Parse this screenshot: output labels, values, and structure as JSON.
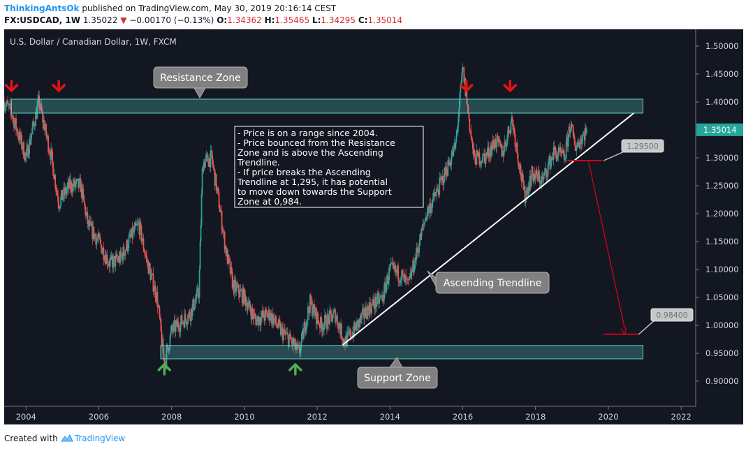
{
  "header": {
    "user": "ThinkingAntsOk",
    "published": " published on TradingView.com, May 30, 2019 20:16:14 CEST",
    "symbol": "FX:USDCAD, 1W",
    "last": "1.35022",
    "change": "−0.00170 (−0.13%)",
    "o_label": "O:",
    "o_value": "1.34362",
    "h_label": "H:",
    "h_value": "1.35465",
    "l_label": "L:",
    "l_value": "1.34295",
    "c_label": "C:",
    "c_value": "1.35014"
  },
  "footer": {
    "created_with": "Created with",
    "brand": "TradingView"
  },
  "colors": {
    "background": "#131722",
    "candle_up": "#26a69a",
    "candle_down": "#ef5350",
    "zone": "#5fd3c8",
    "arrow_down": "#e41414",
    "arrow_up": "#4caf50",
    "projection": "#d0021b",
    "price_badge": "#26a69a"
  },
  "chart_data": {
    "type": "candlestick",
    "title": "U.S. Dollar / Canadian Dollar, 1W, FXCM",
    "xlabel": "",
    "ylabel": "",
    "xlim": [
      2003.4,
      2022.4
    ],
    "ylim": [
      0.855,
      1.53
    ],
    "x_ticks": [
      "2004",
      "2006",
      "2008",
      "2010",
      "2012",
      "2014",
      "2016",
      "2018",
      "2020",
      "2022"
    ],
    "y_ticks": [
      "1.50000",
      "1.45000",
      "1.40000",
      "1.35000",
      "1.30000",
      "1.25000",
      "1.20000",
      "1.15000",
      "1.10000",
      "1.05000",
      "1.00000",
      "0.95000",
      "0.90000"
    ],
    "last_price": "1.35014",
    "price_path": [
      [
        2003.4,
        1.4
      ],
      [
        2003.6,
        1.38
      ],
      [
        2004.0,
        1.3
      ],
      [
        2004.35,
        1.4
      ],
      [
        2004.7,
        1.3
      ],
      [
        2004.9,
        1.22
      ],
      [
        2005.2,
        1.25
      ],
      [
        2005.5,
        1.25
      ],
      [
        2005.7,
        1.18
      ],
      [
        2006.0,
        1.15
      ],
      [
        2006.3,
        1.11
      ],
      [
        2006.6,
        1.12
      ],
      [
        2006.9,
        1.16
      ],
      [
        2007.1,
        1.18
      ],
      [
        2007.3,
        1.12
      ],
      [
        2007.6,
        1.05
      ],
      [
        2007.8,
        0.93
      ],
      [
        2008.0,
        0.99
      ],
      [
        2008.5,
        1.02
      ],
      [
        2008.75,
        1.06
      ],
      [
        2008.85,
        1.29
      ],
      [
        2009.1,
        1.3
      ],
      [
        2009.3,
        1.22
      ],
      [
        2009.5,
        1.13
      ],
      [
        2009.7,
        1.07
      ],
      [
        2010.0,
        1.05
      ],
      [
        2010.3,
        1.01
      ],
      [
        2010.7,
        1.02
      ],
      [
        2011.0,
        0.99
      ],
      [
        2011.3,
        0.97
      ],
      [
        2011.5,
        0.95
      ],
      [
        2011.8,
        1.04
      ],
      [
        2012.1,
        1.0
      ],
      [
        2012.5,
        1.02
      ],
      [
        2012.75,
        0.97
      ],
      [
        2013.0,
        0.99
      ],
      [
        2013.4,
        1.03
      ],
      [
        2013.8,
        1.05
      ],
      [
        2014.0,
        1.1
      ],
      [
        2014.3,
        1.09
      ],
      [
        2014.5,
        1.07
      ],
      [
        2014.7,
        1.12
      ],
      [
        2015.0,
        1.2
      ],
      [
        2015.3,
        1.24
      ],
      [
        2015.5,
        1.27
      ],
      [
        2015.8,
        1.32
      ],
      [
        2016.0,
        1.46
      ],
      [
        2016.3,
        1.3
      ],
      [
        2016.6,
        1.3
      ],
      [
        2016.9,
        1.33
      ],
      [
        2017.1,
        1.31
      ],
      [
        2017.35,
        1.37
      ],
      [
        2017.7,
        1.23
      ],
      [
        2017.9,
        1.27
      ],
      [
        2018.2,
        1.26
      ],
      [
        2018.5,
        1.31
      ],
      [
        2018.8,
        1.3
      ],
      [
        2018.95,
        1.36
      ],
      [
        2019.1,
        1.32
      ],
      [
        2019.4,
        1.35
      ]
    ],
    "zones": [
      {
        "name": "Resistance Zone",
        "x0": 2003.6,
        "x1": 2020.95,
        "y0": 1.38,
        "y1": 1.405
      },
      {
        "name": "Support Zone",
        "x0": 2007.7,
        "x1": 2020.95,
        "y0": 0.94,
        "y1": 0.964
      }
    ],
    "trendline": {
      "label": "Ascending Trendline",
      "x0": 2012.7,
      "y0": 0.965,
      "x1": 2020.7,
      "y1": 1.38
    },
    "projection": {
      "x0": 2019.45,
      "y0": 1.295,
      "x1": 2020.45,
      "y1": 0.984
    },
    "levels": [
      {
        "label": "1.29500",
        "value": 1.295
      },
      {
        "label": "0.98400",
        "value": 0.984
      }
    ],
    "arrows_down": [
      2003.6,
      2004.9,
      2016.1,
      2017.3
    ],
    "arrows_up": [
      2007.8,
      2011.4
    ],
    "annotation_lines": [
      "- Price is on a range since 2004.",
      "- Price bounced from the Resistance",
      "Zone and is above the Ascending",
      "Trendline.",
      "- If price breaks the Ascending",
      "Trendline at 1,295, it has potential",
      "to move down towards the Support",
      "Zone at 0,984."
    ]
  }
}
